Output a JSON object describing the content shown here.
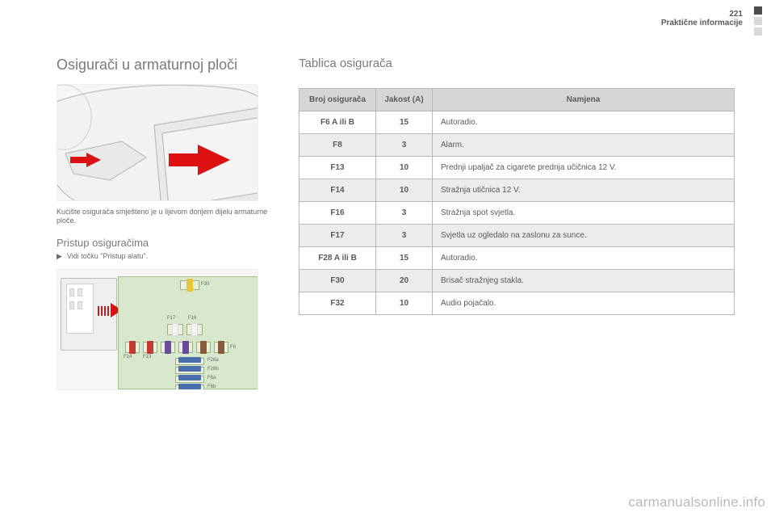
{
  "header": {
    "page_number": "221",
    "section": "Praktične informacije"
  },
  "left": {
    "title": "Osigurači u armaturnoj ploči",
    "caption": "Kućište osigurača smješteno je u lijevom donjem dijelu armaturne ploče.",
    "subhead": "Pristup osiguračima",
    "bullet": "Vidi točku \"Pristup alatu\"."
  },
  "right": {
    "table_title": "Tablica osigurača",
    "columns": [
      "Broj osigurača",
      "Jakost (A)",
      "Namjena"
    ],
    "rows": [
      [
        "F6 A ili B",
        "15",
        "Autoradio."
      ],
      [
        "F8",
        "3",
        "Alarm."
      ],
      [
        "F13",
        "10",
        "Prednji upaljač za cigarete prednja učičnica 12 V."
      ],
      [
        "F14",
        "10",
        "Stražnja utičnica 12 V."
      ],
      [
        "F16",
        "3",
        "Stražnja spot svjetla."
      ],
      [
        "F17",
        "3",
        "Svjetla uz ogledalo na zaslonu za sunce."
      ],
      [
        "F28 A ili B",
        "15",
        "Autoradio."
      ],
      [
        "F30",
        "20",
        "Brisač stražnjeg stakla."
      ],
      [
        "F32",
        "10",
        "Audio pojačalo."
      ]
    ]
  },
  "fusebox_labels": {
    "top": "F30",
    "mid_left": "F17",
    "mid_right": "F16",
    "row_a": "F14",
    "row_b": "F13",
    "row_c": "F8",
    "stack": [
      "F28a",
      "F28b",
      "F6a",
      "F6b"
    ]
  },
  "fuse_colors": {
    "yellow": "#e8c63c",
    "white": "#f4f4f4",
    "red": "#c23a30",
    "purple": "#6b4a9c",
    "brown": "#8a5a3a",
    "blue": "#4a6fae"
  },
  "watermark": "carmanualsonline.info"
}
